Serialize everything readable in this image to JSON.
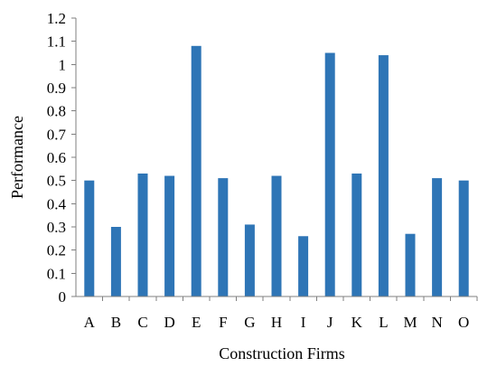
{
  "chart_data": {
    "type": "bar",
    "title": "",
    "xlabel": "Construction Firms",
    "ylabel": "Performance",
    "categories": [
      "A",
      "B",
      "C",
      "D",
      "E",
      "F",
      "G",
      "H",
      "I",
      "J",
      "K",
      "L",
      "M",
      "N",
      "O"
    ],
    "values": [
      0.5,
      0.3,
      0.53,
      0.52,
      1.08,
      0.51,
      0.31,
      0.52,
      0.26,
      1.05,
      0.53,
      1.04,
      0.27,
      0.51,
      0.5
    ],
    "ylim": [
      0,
      1.2
    ],
    "yticks": [
      "0",
      "0.1",
      "0.2",
      "0.3",
      "0.4",
      "0.5",
      "0.6",
      "0.7",
      "0.8",
      "0.9",
      "1",
      "1.1",
      "1.2"
    ],
    "grid": false,
    "legend": "none",
    "bar_color": "#2e75b6"
  }
}
